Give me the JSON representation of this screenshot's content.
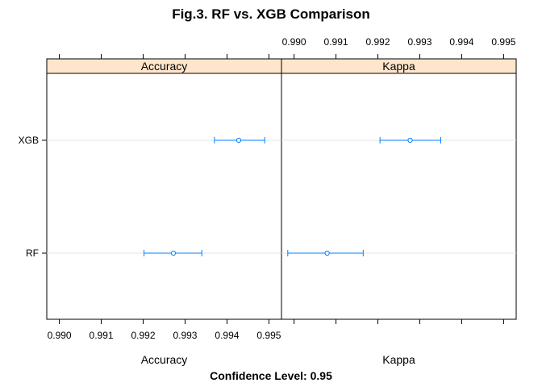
{
  "chart_data": {
    "type": "dotplot",
    "title": "Fig.3. RF vs. XGB Comparison",
    "categories": [
      "RF",
      "XGB"
    ],
    "panels": [
      {
        "name": "Accuracy",
        "xlabel": "Accuracy",
        "xlim": [
          0.9897,
          0.9953
        ],
        "ticks": [
          0.99,
          0.991,
          0.992,
          0.993,
          0.994,
          0.995
        ],
        "tick_labels": [
          "0.990",
          "0.991",
          "0.992",
          "0.993",
          "0.994",
          "0.995"
        ],
        "tick_side": "bottom",
        "points": [
          {
            "category": "XGB",
            "estimate": 0.99428,
            "lower": 0.9937,
            "upper": 0.9949
          },
          {
            "category": "RF",
            "estimate": 0.99272,
            "lower": 0.99202,
            "upper": 0.9934
          }
        ]
      },
      {
        "name": "Kappa",
        "xlabel": "Kappa",
        "xlim": [
          0.9897,
          0.9953
        ],
        "ticks": [
          0.99,
          0.991,
          0.992,
          0.993,
          0.994,
          0.995
        ],
        "tick_labels": [
          "0.990",
          "0.991",
          "0.992",
          "0.993",
          "0.994",
          "0.995"
        ],
        "tick_side": "top",
        "points": [
          {
            "category": "XGB",
            "estimate": 0.99277,
            "lower": 0.99205,
            "upper": 0.9935
          },
          {
            "category": "RF",
            "estimate": 0.99079,
            "lower": 0.98985,
            "upper": 0.99165
          }
        ]
      }
    ],
    "footer": "Confidence Level: 0.95",
    "colors": {
      "point": "#0080FF",
      "strip": "#FFE5CC",
      "reference_line": "#E6E6E6"
    }
  }
}
